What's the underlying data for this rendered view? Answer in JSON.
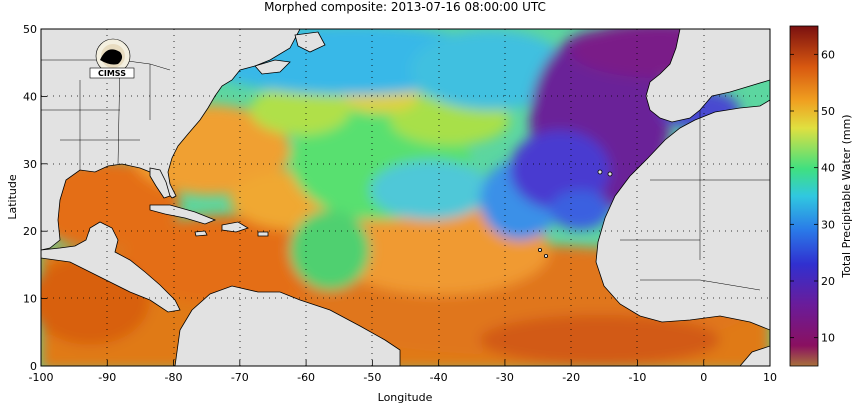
{
  "title": "Morphed composite: 2013-07-16 08:00:00 UTC",
  "map": {
    "lon_range": [
      -100,
      10
    ],
    "lat_range": [
      0,
      50
    ],
    "x_ticks": [
      -100,
      -90,
      -80,
      -70,
      -60,
      -50,
      -40,
      -30,
      -20,
      -10,
      0,
      10
    ],
    "y_ticks": [
      0,
      10,
      20,
      30,
      40,
      50
    ],
    "x_label": "Longitude",
    "y_label": "Latitude",
    "grid": "dotted",
    "land_color": "#e2e2e2",
    "logo_text": "CIMSS"
  },
  "colorbar": {
    "label": "Total Precipitable Water (mm)",
    "range": [
      5,
      65
    ],
    "ticks": [
      10,
      20,
      30,
      40,
      50,
      60
    ],
    "colors": [
      "#a8703c",
      "#8a1060",
      "#6a1c9a",
      "#3030d0",
      "#2a7ae8",
      "#30c8e0",
      "#40e080",
      "#e0e040",
      "#f0a020",
      "#d85810",
      "#7a1010"
    ]
  }
}
